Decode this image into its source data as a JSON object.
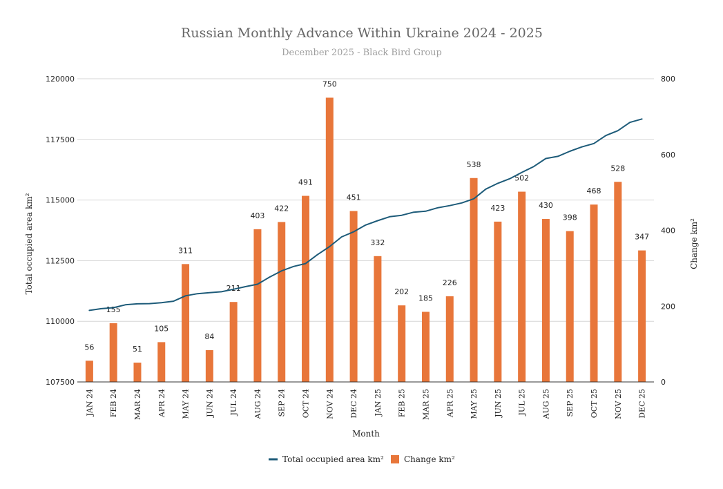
{
  "chart_data": {
    "type": "bar",
    "title": "Russian Monthly Advance Within Ukraine 2024 - 2025",
    "subtitle": "December 2025 - Black Bird Group",
    "xlabel": "Month",
    "ylabel_left": "Total occupied area km²",
    "ylabel_right": "Change km²",
    "y_left_lim": [
      107500,
      120000
    ],
    "y_left_ticks": [
      107500,
      110000,
      112500,
      115000,
      117500,
      120000
    ],
    "y_right_lim": [
      0,
      800
    ],
    "y_right_ticks": [
      0,
      200,
      400,
      600,
      800
    ],
    "grid": true,
    "legend_position": "bottom",
    "categories": [
      "JAN 24",
      "FEB 24",
      "MAR 24",
      "APR 24",
      "MAY 24",
      "JUN 24",
      "JUL 24",
      "AUG 24",
      "SEP 24",
      "OCT 24",
      "NOV 24",
      "DEC 24",
      "JAN 25",
      "FEB 25",
      "MAR 25",
      "APR 25",
      "MAY 25",
      "JUN 25",
      "JUL 25",
      "AUG 25",
      "SEP 25",
      "OCT 25",
      "NOV 25",
      "DEC 25"
    ],
    "series": [
      {
        "name": "Total occupied area km²",
        "type": "line",
        "axis": "left",
        "color": "#1d5b79",
        "x": [
          0,
          0.5,
          1,
          1.5,
          2,
          2.5,
          3,
          3.5,
          4,
          4.5,
          5,
          5.5,
          6,
          6.5,
          7,
          7.5,
          8,
          8.5,
          9,
          9.5,
          10,
          10.5,
          11,
          11.5,
          12,
          12.5,
          13,
          13.5,
          14,
          14.5,
          15,
          15.5,
          16,
          16.5,
          17,
          17.5,
          18,
          18.5,
          19,
          19.5,
          20,
          20.5,
          21,
          21.5,
          22,
          22.5,
          23
        ],
        "values": [
          110450,
          110520,
          110560,
          110680,
          110720,
          110730,
          110770,
          110830,
          111050,
          111140,
          111180,
          111220,
          111320,
          111430,
          111530,
          111820,
          112080,
          112260,
          112380,
          112750,
          113080,
          113480,
          113690,
          113970,
          114150,
          114310,
          114370,
          114500,
          114540,
          114680,
          114770,
          114880,
          115050,
          115450,
          115690,
          115880,
          116140,
          116380,
          116710,
          116800,
          117010,
          117190,
          117330,
          117660,
          117860,
          118200,
          118340
        ]
      },
      {
        "name": "Change km²",
        "type": "bar",
        "axis": "right",
        "color": "#e8763a",
        "values": [
          56,
          155,
          51,
          105,
          311,
          84,
          211,
          403,
          422,
          491,
          750,
          451,
          332,
          202,
          185,
          226,
          538,
          423,
          502,
          430,
          398,
          468,
          528,
          347
        ]
      }
    ]
  }
}
